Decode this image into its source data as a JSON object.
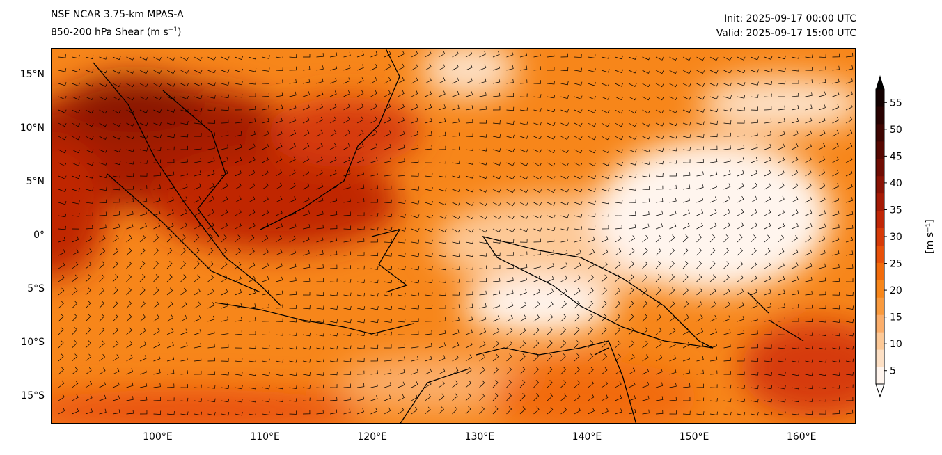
{
  "title": {
    "model": "NSF NCAR 3.75-km MPAS-A",
    "field": "850-200 hPa Shear (m s",
    "unit_sup": "−1",
    "field_close": ")",
    "init": "Init: 2025-09-17 00:00 UTC",
    "valid": "Valid: 2025-09-17 15:00 UTC"
  },
  "map": {
    "lon_range": [
      90,
      165
    ],
    "lat_range": [
      -17.5,
      17.5
    ],
    "lon_ticks": [
      {
        "v": 100,
        "l": "100°E"
      },
      {
        "v": 110,
        "l": "110°E"
      },
      {
        "v": 120,
        "l": "120°E"
      },
      {
        "v": 130,
        "l": "130°E"
      },
      {
        "v": 140,
        "l": "140°E"
      },
      {
        "v": 150,
        "l": "150°E"
      },
      {
        "v": 160,
        "l": "160°E"
      }
    ],
    "lat_ticks": [
      {
        "v": 15,
        "l": "15°N"
      },
      {
        "v": 10,
        "l": "10°N"
      },
      {
        "v": 5,
        "l": "5°N"
      },
      {
        "v": 0,
        "l": "0°"
      },
      {
        "v": -5,
        "l": "5°S"
      },
      {
        "v": -10,
        "l": "10°S"
      },
      {
        "v": -15,
        "l": "15°S"
      }
    ]
  },
  "colorbar": {
    "label": "[m s⁻¹]",
    "ticks": [
      "5",
      "10",
      "15",
      "20",
      "25",
      "30",
      "35",
      "40",
      "45",
      "50",
      "55"
    ],
    "range": [
      2.5,
      57.5
    ],
    "colors": [
      "#fff5ee",
      "#fde0c5",
      "#fdc997",
      "#fbae6b",
      "#f99a3e",
      "#f7861a",
      "#f26b0b",
      "#e85009",
      "#d63a08",
      "#c02606",
      "#a51a05",
      "#8a1204",
      "#700c03",
      "#560802",
      "#3e0502",
      "#280201",
      "#140101"
    ]
  }
}
